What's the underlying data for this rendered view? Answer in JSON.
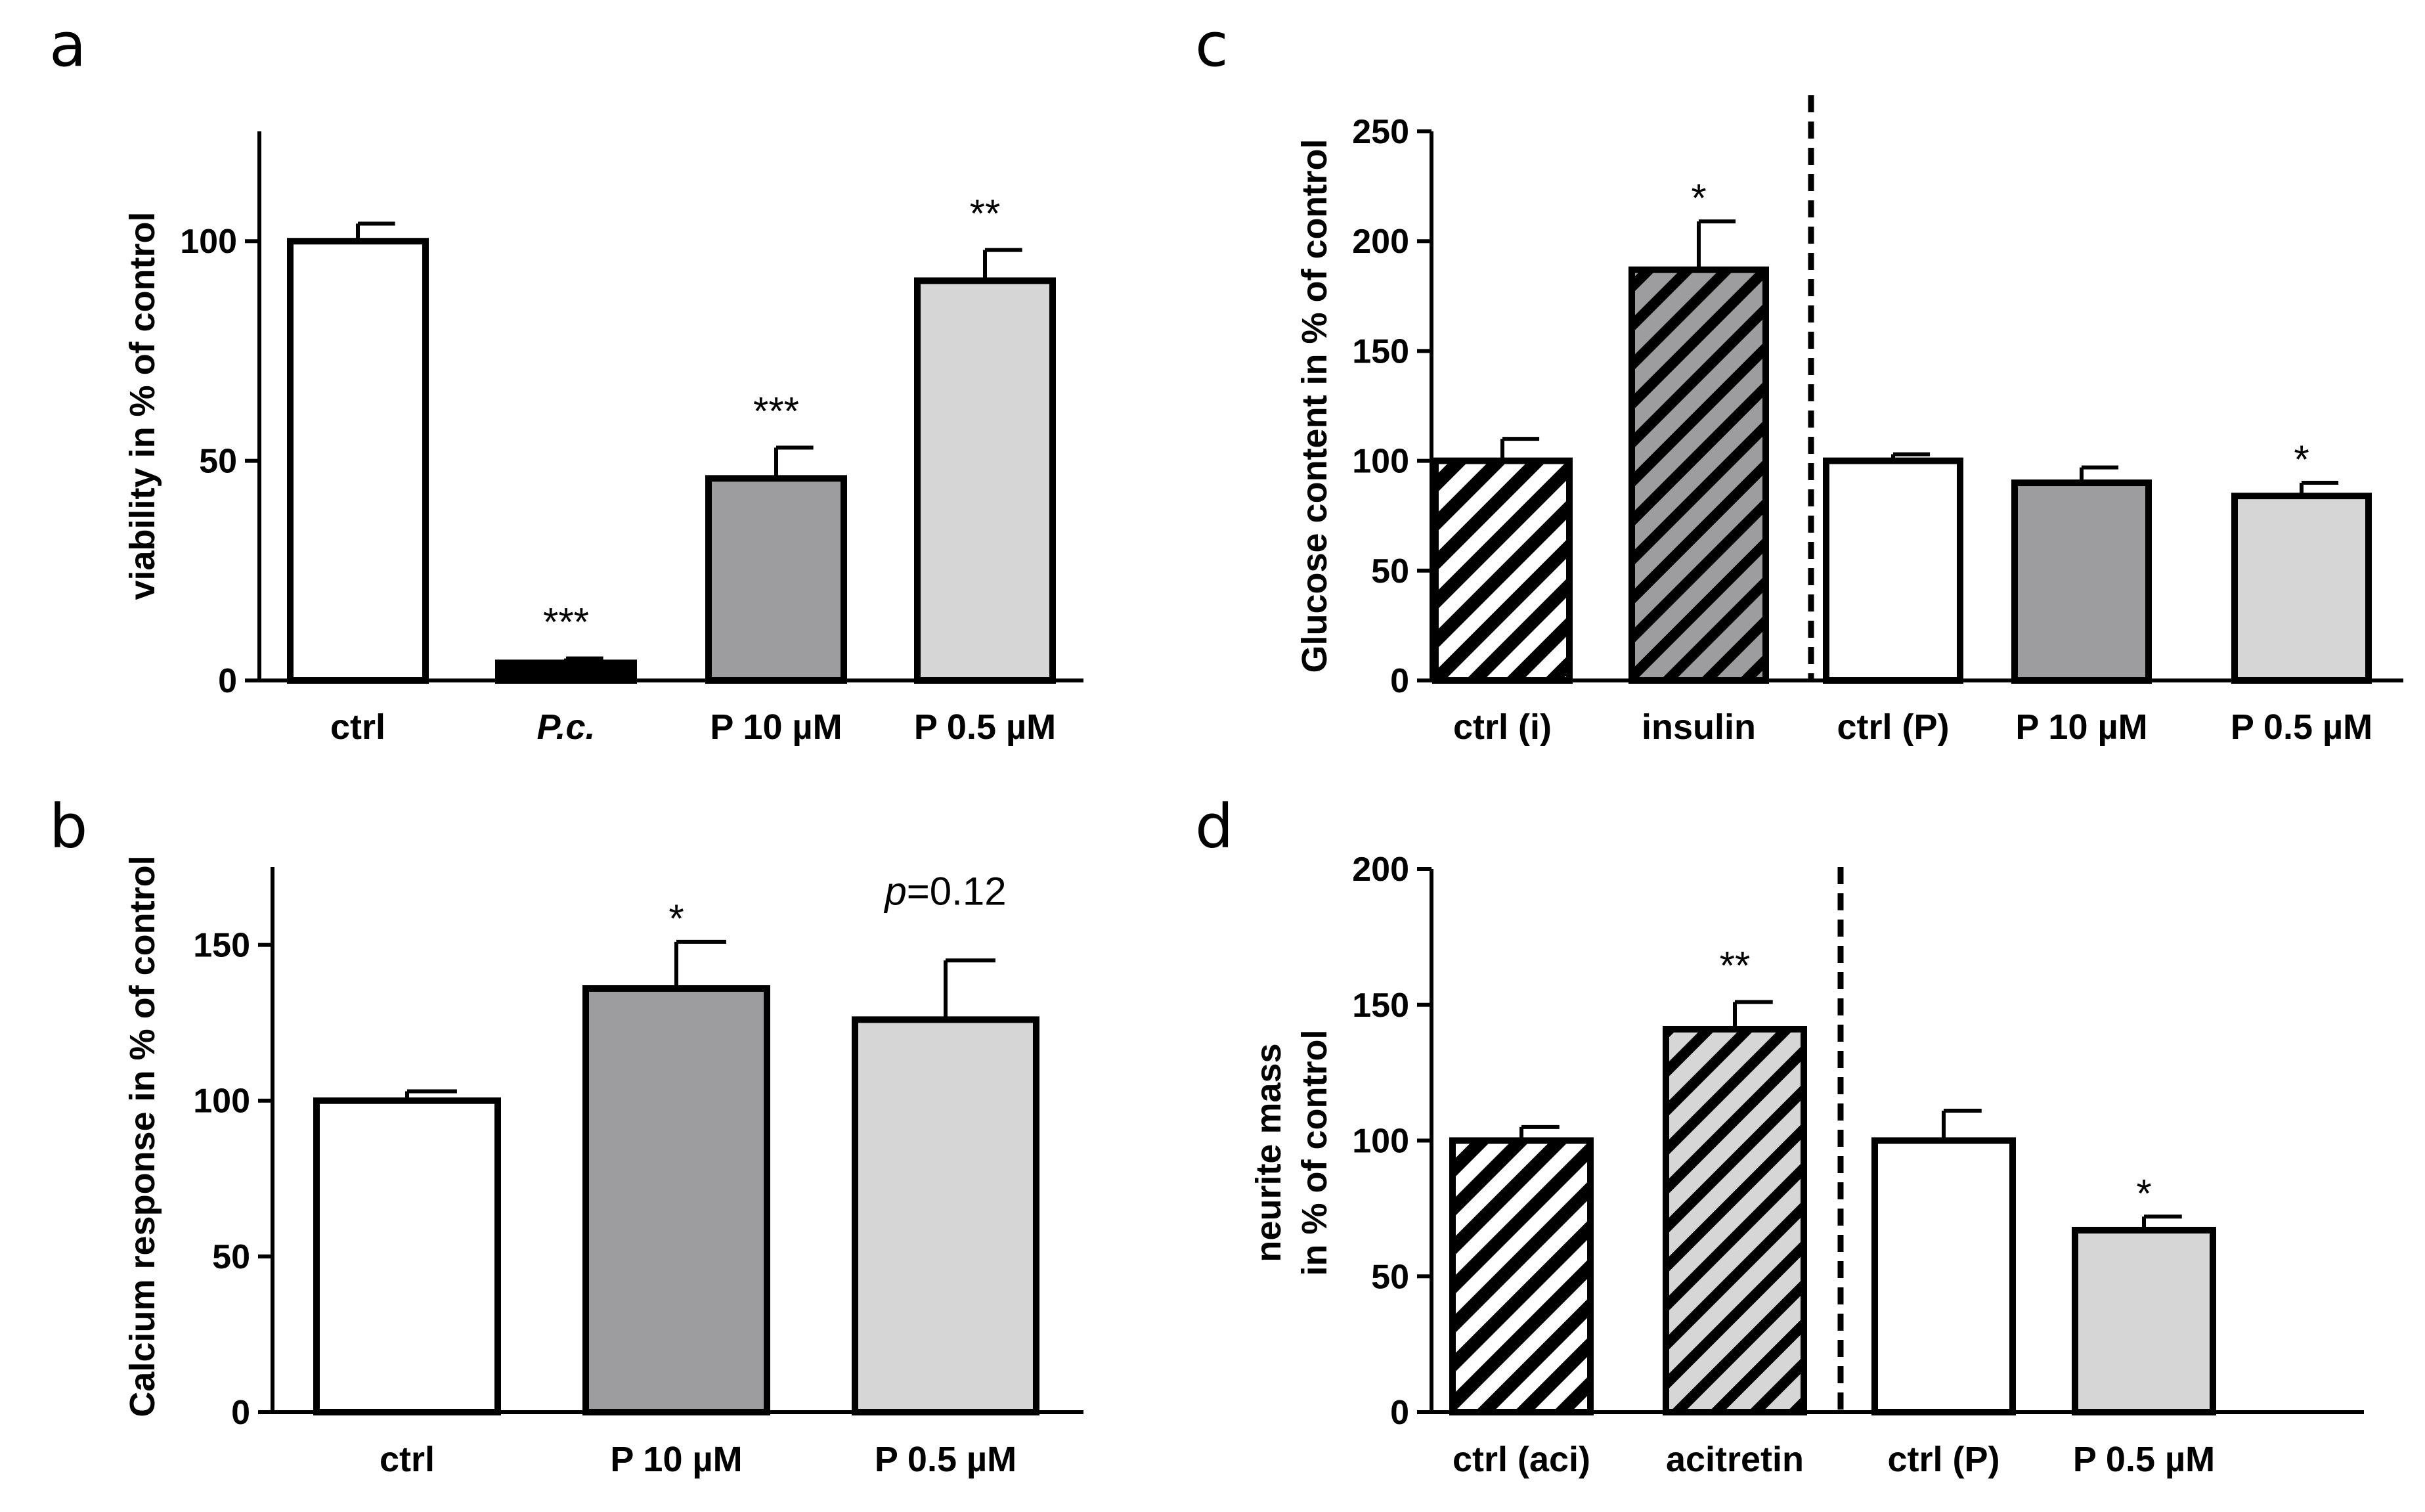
{
  "chart_data": [
    {
      "panel": "a",
      "type": "bar",
      "categories": [
        "ctrl",
        "P.c.",
        "P 10 µM",
        "P 0.5 µM"
      ],
      "italic_categories": [
        1
      ],
      "values": [
        100,
        4,
        46,
        91
      ],
      "errors": [
        4,
        1,
        7,
        7
      ],
      "fills": [
        "#ffffff",
        "#000000",
        "#9d9d9f",
        "#d6d6d6"
      ],
      "hatch": [
        false,
        false,
        false,
        false
      ],
      "annotations": [
        "",
        "***",
        "***",
        "**"
      ],
      "ylabel": "viability in % of control",
      "yticks": [
        0,
        50,
        100
      ],
      "ylim": [
        0,
        125
      ],
      "divider_after": null
    },
    {
      "panel": "b",
      "type": "bar",
      "categories": [
        "ctrl",
        "P 10 µM",
        "P 0.5 µM"
      ],
      "italic_categories": [],
      "values": [
        100,
        136,
        126
      ],
      "errors": [
        3,
        15,
        19
      ],
      "fills": [
        "#ffffff",
        "#9d9d9f",
        "#d6d6d6"
      ],
      "hatch": [
        false,
        false,
        false
      ],
      "annotations": [
        "",
        "*",
        "p=0.12"
      ],
      "ylabel": "Calcium response in % of control",
      "yticks": [
        0,
        50,
        100,
        150
      ],
      "ylim": [
        0,
        175
      ],
      "divider_after": null
    },
    {
      "panel": "c",
      "type": "bar",
      "categories": [
        "ctrl (i)",
        "insulin",
        "ctrl (P)",
        "P 10 µM",
        "P 0.5 µM"
      ],
      "italic_categories": [],
      "values": [
        100,
        187,
        100,
        90,
        84
      ],
      "errors": [
        10,
        22,
        3,
        7,
        6
      ],
      "fills": [
        "#ffffff",
        "#9d9d9f",
        "#ffffff",
        "#9d9d9f",
        "#d6d6d6"
      ],
      "hatch": [
        true,
        true,
        false,
        false,
        false
      ],
      "annotations": [
        "",
        "*",
        "",
        "",
        "*"
      ],
      "ylabel": "Glucose content in % of control",
      "yticks": [
        0,
        50,
        100,
        150,
        200,
        250
      ],
      "ylim": [
        0,
        250
      ],
      "divider_after": 1
    },
    {
      "panel": "d",
      "type": "bar",
      "categories": [
        "ctrl (aci)",
        "acitretin",
        "ctrl (P)",
        "P 0.5 µM"
      ],
      "italic_categories": [],
      "values": [
        100,
        141,
        100,
        67
      ],
      "errors": [
        5,
        10,
        11,
        5
      ],
      "fills": [
        "#ffffff",
        "#d6d6d6",
        "#ffffff",
        "#d6d6d6"
      ],
      "hatch": [
        true,
        true,
        false,
        false
      ],
      "annotations": [
        "",
        "**",
        "",
        "*"
      ],
      "ylabel": "neurite mass",
      "ylabel2": "in % of control",
      "yticks": [
        0,
        50,
        100,
        150,
        200
      ],
      "ylim": [
        0,
        200
      ],
      "divider_after": 1
    }
  ]
}
